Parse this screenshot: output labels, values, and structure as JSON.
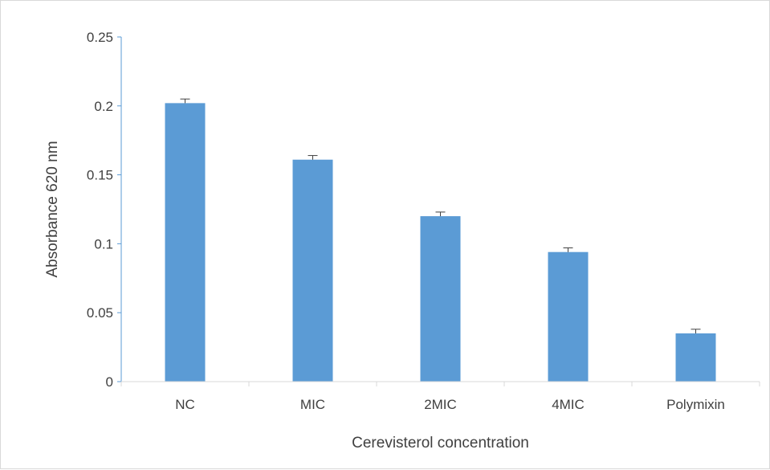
{
  "chart_data": {
    "type": "bar",
    "title": "",
    "xlabel": "Cerevisterol concentration",
    "ylabel": "Absorbance 620 nm",
    "categories": [
      "NC",
      "MIC",
      "2MIC",
      "4MIC",
      "Polymixin"
    ],
    "values": [
      0.202,
      0.161,
      0.12,
      0.094,
      0.035
    ],
    "error_bars": [
      0.003,
      0.003,
      0.003,
      0.003,
      0.003
    ],
    "ylim": [
      0,
      0.25
    ],
    "yticks": [
      "0",
      "0.05",
      "0.1",
      "0.15",
      "0.2",
      "0.25"
    ],
    "grid": false,
    "legend": "none",
    "bar_color": "#5b9bd5",
    "axis_color": "#5b9bd5"
  }
}
